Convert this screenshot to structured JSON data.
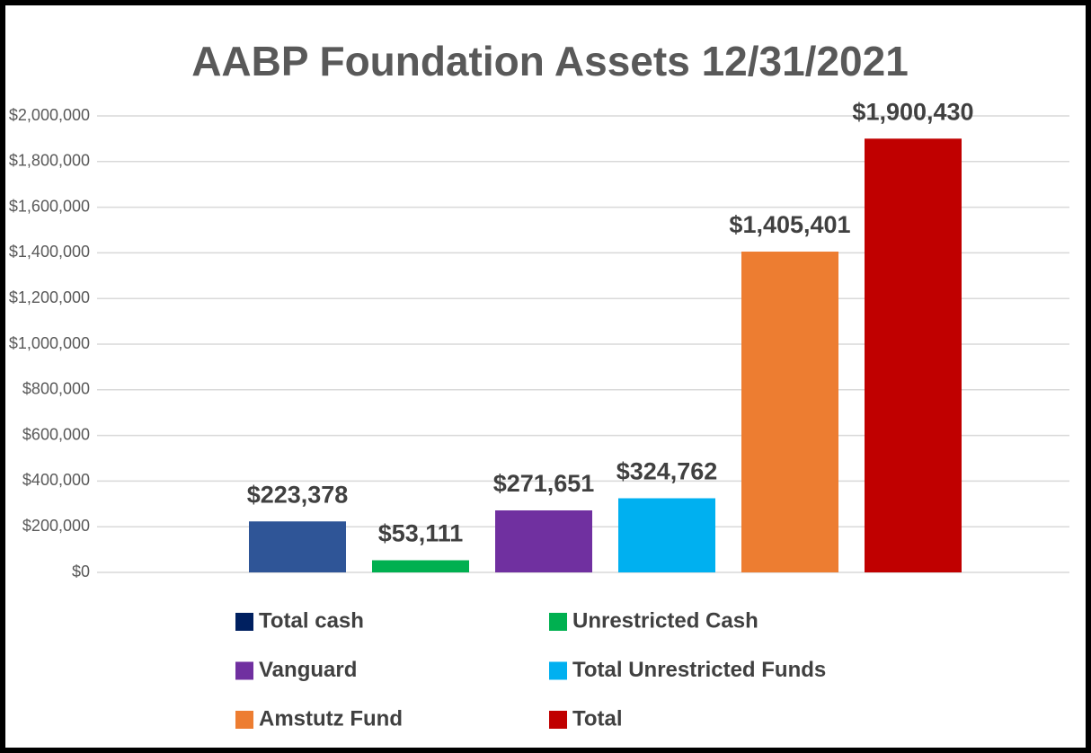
{
  "chart_data": {
    "type": "bar",
    "title": "AABP Foundation Assets 12/31/2021",
    "series": [
      {
        "name": "Total cash",
        "color": "#2f5597",
        "legend_color": "#002060",
        "values": [
          223378
        ],
        "value_labels": [
          "$223,378"
        ]
      },
      {
        "name": "Unrestricted Cash",
        "color": "#00b050",
        "values": [
          53111
        ],
        "value_labels": [
          "$53,111"
        ]
      },
      {
        "name": "Vanguard",
        "color": "#7030a0",
        "values": [
          271651
        ],
        "value_labels": [
          "$271,651"
        ]
      },
      {
        "name": "Total Unrestricted Funds",
        "color": "#00b0f0",
        "values": [
          324762
        ],
        "value_labels": [
          "$324,762"
        ]
      },
      {
        "name": "Amstutz Fund",
        "color": "#ed7d31",
        "values": [
          1405401
        ],
        "value_labels": [
          "$1,405,401"
        ]
      },
      {
        "name": "Total",
        "color": "#c00000",
        "values": [
          1900430
        ],
        "value_labels": [
          "$1,900,430"
        ]
      }
    ],
    "ylim": [
      0,
      2000000
    ],
    "yticks": [
      {
        "value": 0,
        "label": "$0"
      },
      {
        "value": 200000,
        "label": "$200,000"
      },
      {
        "value": 400000,
        "label": "$400,000"
      },
      {
        "value": 600000,
        "label": "$600,000"
      },
      {
        "value": 800000,
        "label": "$800,000"
      },
      {
        "value": 1000000,
        "label": "$1,000,000"
      },
      {
        "value": 1200000,
        "label": "$1,200,000"
      },
      {
        "value": 1400000,
        "label": "$1,400,000"
      },
      {
        "value": 1600000,
        "label": "$1,600,000"
      },
      {
        "value": 1800000,
        "label": "$1,800,000"
      },
      {
        "value": 2000000,
        "label": "$2,000,000"
      }
    ],
    "grid": true,
    "legend": "bottom"
  }
}
